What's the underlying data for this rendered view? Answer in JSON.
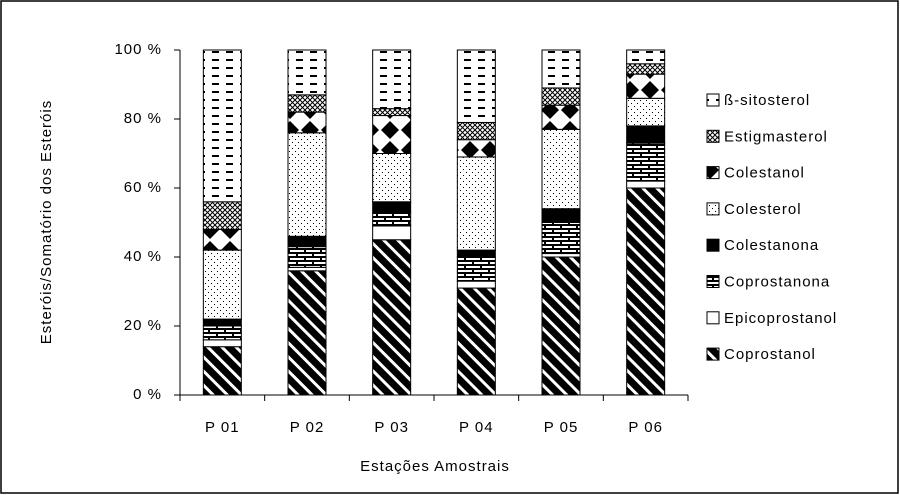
{
  "chart_data": {
    "type": "stacked_bar",
    "y_label": "Esteróis/Somatório dos Esteróis",
    "x_label": "Estações Amostrais",
    "categories": [
      "P 01",
      "P 02",
      "P 03",
      "P 04",
      "P 05",
      "P 06"
    ],
    "ylim": [
      0,
      100
    ],
    "yticks": [
      {
        "value": 0,
        "label": "0 %"
      },
      {
        "value": 20,
        "label": "20 %"
      },
      {
        "value": 40,
        "label": "40 %"
      },
      {
        "value": 60,
        "label": "60 %"
      },
      {
        "value": 80,
        "label": "80 %"
      },
      {
        "value": 100,
        "label": "100 %"
      }
    ],
    "grid": false,
    "legend": "right",
    "series": [
      {
        "name": "Coprostanol",
        "pattern": "stripes",
        "values": [
          14,
          36,
          45,
          31,
          40,
          60
        ]
      },
      {
        "name": "Epicoprostanol",
        "pattern": "white",
        "values": [
          2,
          1,
          4,
          2,
          1,
          2
        ]
      },
      {
        "name": "Coprostanona",
        "pattern": "bricks",
        "values": [
          4,
          6,
          4,
          7,
          9,
          11
        ]
      },
      {
        "name": "Colestanona",
        "pattern": "black",
        "values": [
          2,
          3,
          3,
          2,
          4,
          5
        ]
      },
      {
        "name": "Colesterol",
        "pattern": "dots",
        "values": [
          20,
          30,
          14,
          27,
          23,
          8
        ]
      },
      {
        "name": "Colestanol",
        "pattern": "diamonds",
        "values": [
          6,
          6,
          11,
          5,
          7,
          7
        ]
      },
      {
        "name": "Estigmasterol",
        "pattern": "crosshatch",
        "values": [
          8,
          5,
          2,
          5,
          5,
          3
        ]
      },
      {
        "name": "ß-sitosterol",
        "pattern": "dashes",
        "values": [
          44,
          13,
          17,
          21,
          11,
          4
        ]
      }
    ]
  }
}
